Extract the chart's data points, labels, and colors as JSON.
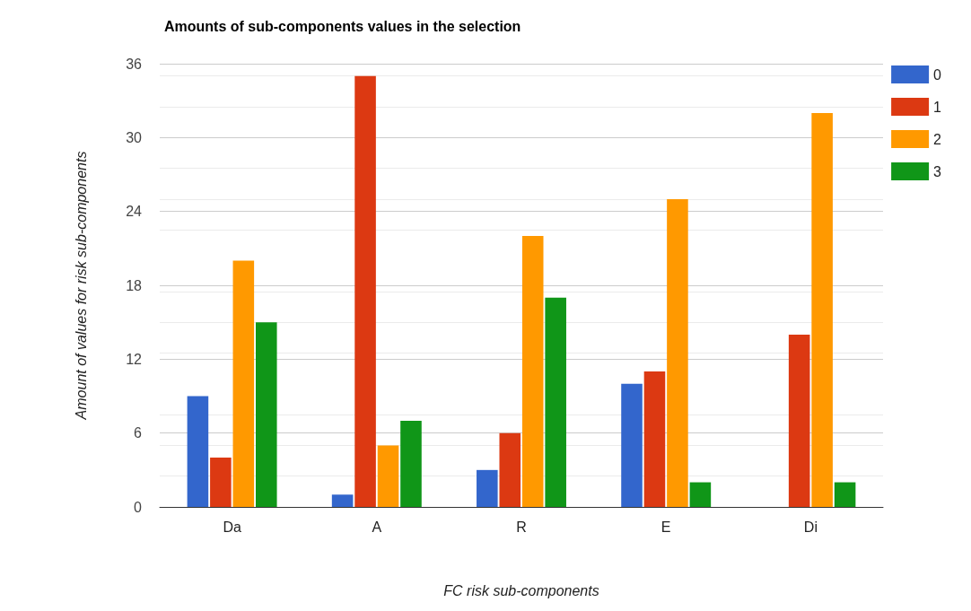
{
  "chart_data": {
    "type": "bar",
    "title": "Amounts of sub-components values in the selection",
    "xlabel": "FC risk sub-components",
    "ylabel": "Amount of values for risk sub-components",
    "categories": [
      "Da",
      "A",
      "R",
      "E",
      "Di"
    ],
    "series": [
      {
        "name": "0",
        "color": "#3366cc",
        "values": [
          9,
          1,
          3,
          10,
          0
        ]
      },
      {
        "name": "1",
        "color": "#dc3912",
        "values": [
          4,
          35,
          6,
          11,
          14
        ]
      },
      {
        "name": "2",
        "color": "#ff9900",
        "values": [
          20,
          5,
          22,
          25,
          32
        ]
      },
      {
        "name": "3",
        "color": "#109618",
        "values": [
          15,
          7,
          17,
          2,
          2
        ]
      }
    ],
    "ylim": [
      0,
      36
    ],
    "yticks": [
      0,
      6,
      12,
      18,
      24,
      30,
      36
    ],
    "grid": "y",
    "legend": "top right"
  }
}
